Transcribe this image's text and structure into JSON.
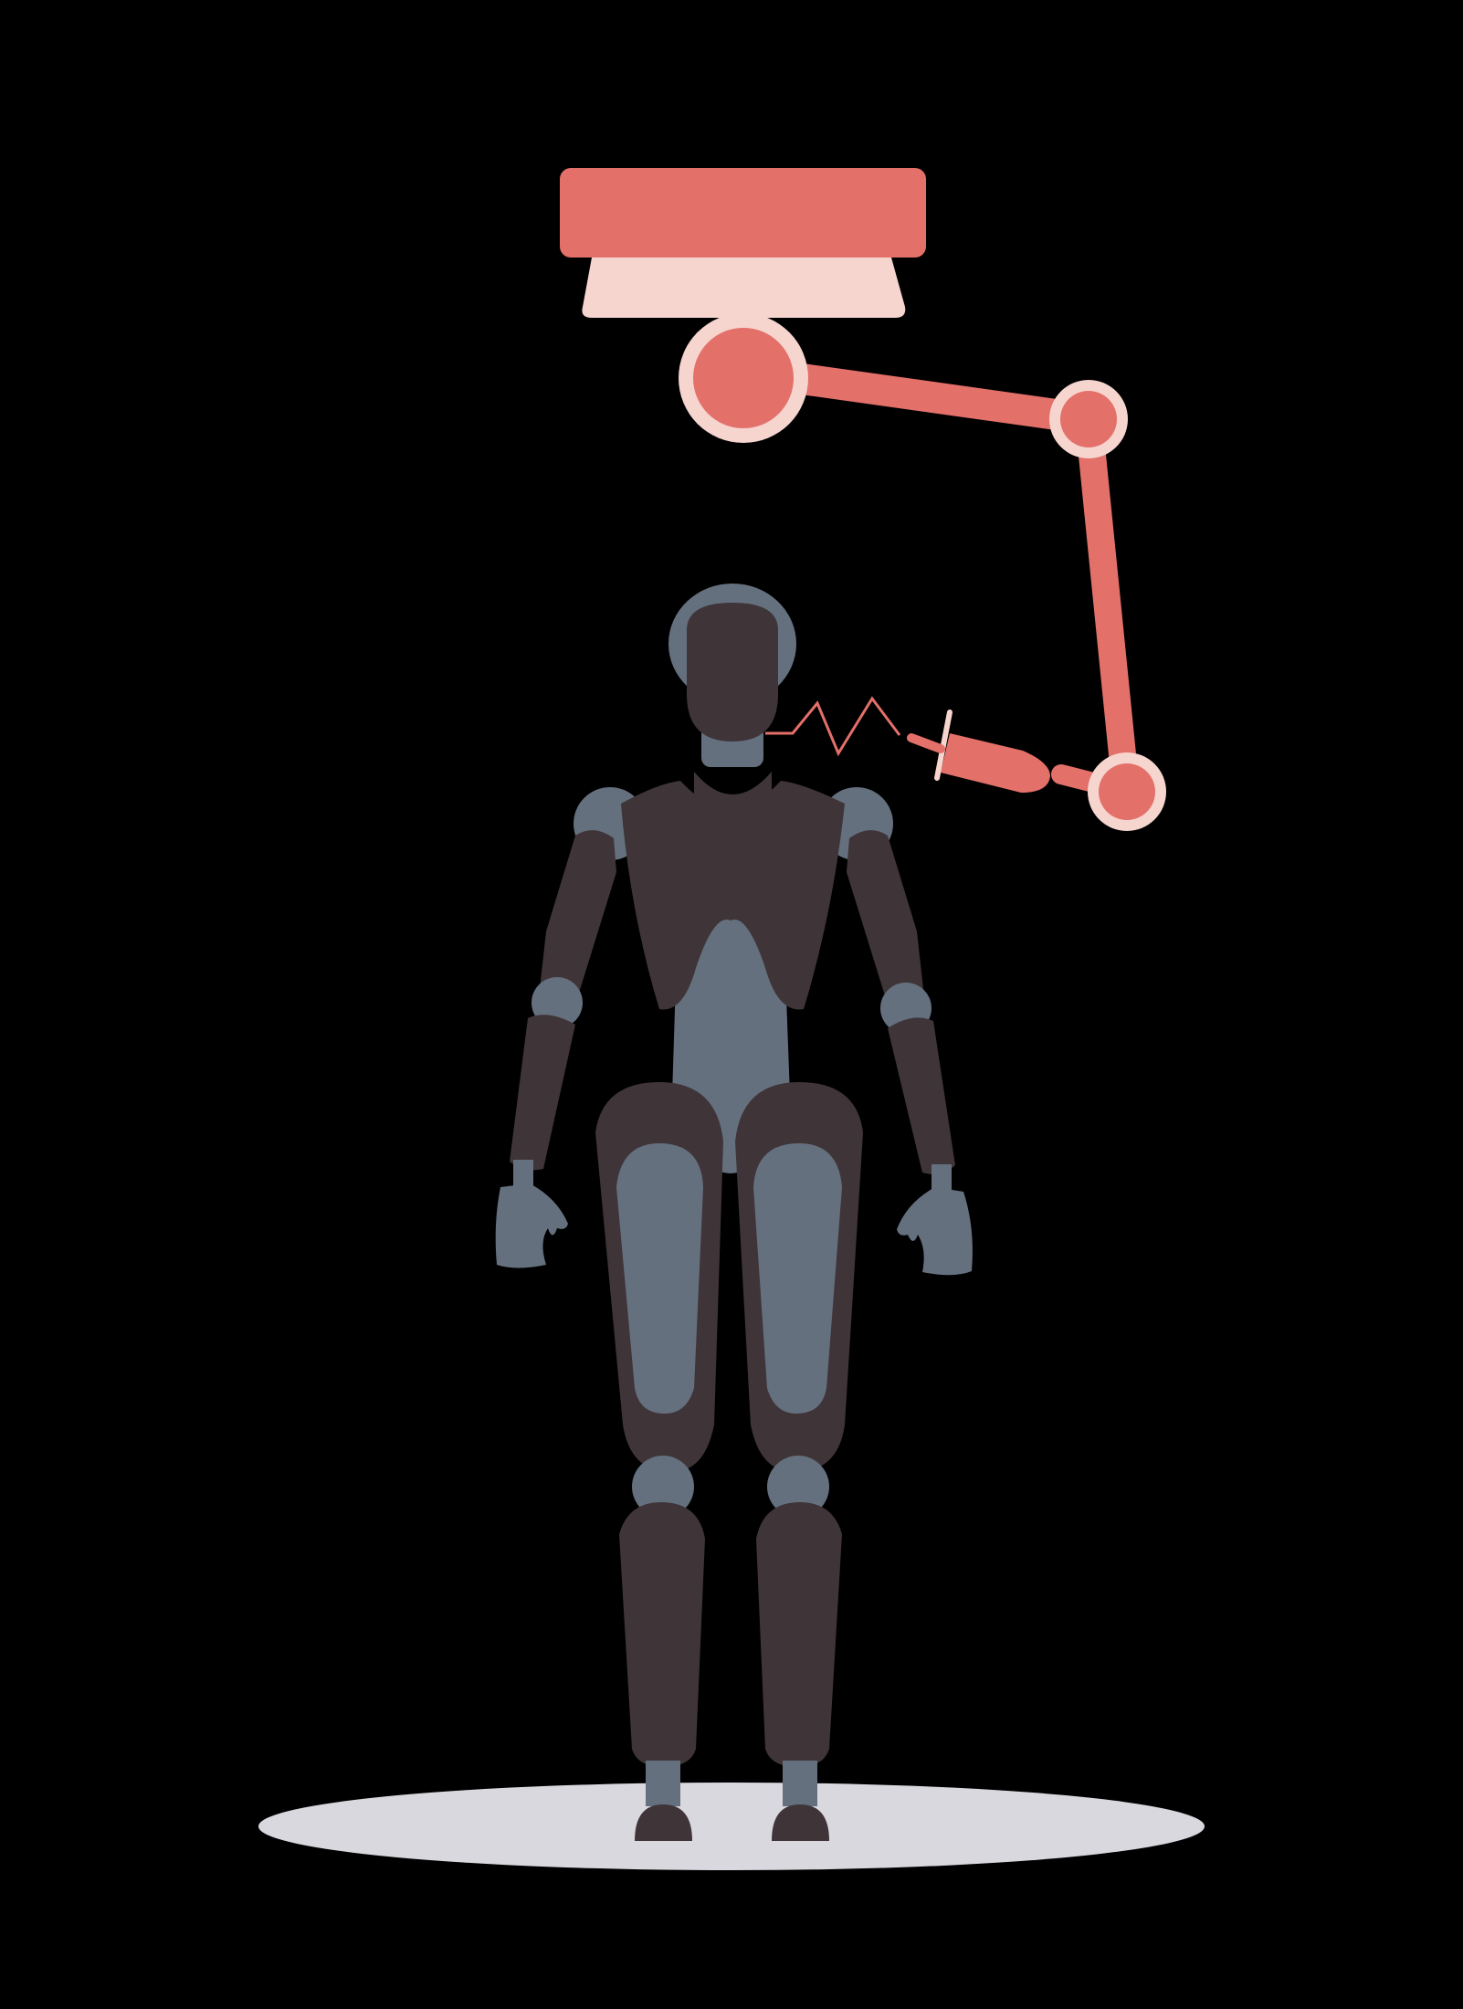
{
  "illustration": {
    "subject": "humanoid-robot-with-ceiling-robotic-arm",
    "palette": {
      "background": "#000000",
      "arm_red": "#E4706A",
      "arm_light": "#F6D5CF",
      "robot_dark": "#3F3538",
      "robot_blue_gray": "#65707F",
      "floor_shadow": "#DAD8DF",
      "spark": "#E4706A"
    },
    "icons": {
      "arm": "robotic-arm-icon",
      "syringe": "syringe-icon",
      "spark": "electric-spark-icon",
      "robot": "humanoid-robot-icon"
    }
  }
}
